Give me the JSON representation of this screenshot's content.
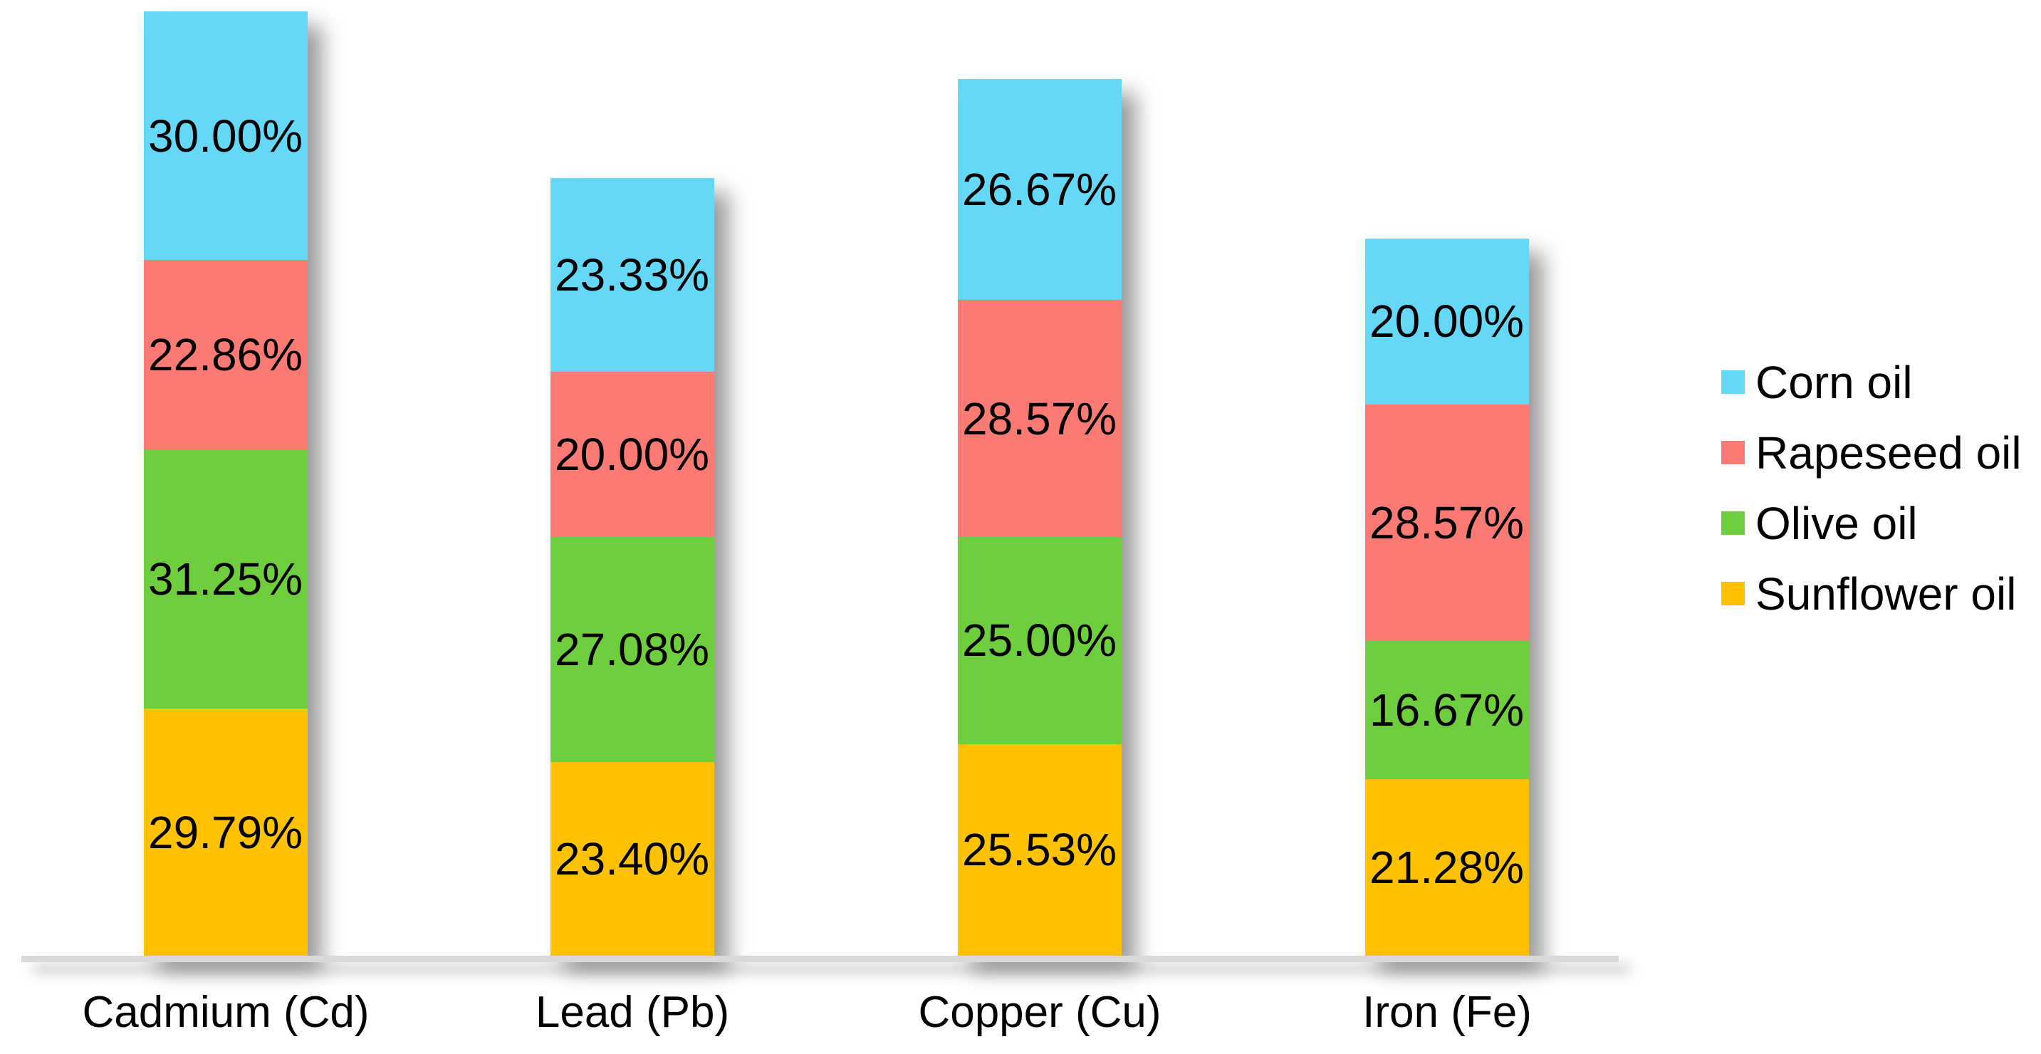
{
  "chart_data": {
    "type": "bar",
    "stacked": true,
    "title": "",
    "xlabel": "",
    "ylabel": "",
    "grid": false,
    "value_format": "percent_2dp",
    "categories": [
      "Cadmium (Cd)",
      "Lead (Pb)",
      "Copper (Cu)",
      "Iron (Fe)"
    ],
    "series_bottom_to_top": [
      {
        "name": "Sunflower oil",
        "color": "#FFC201",
        "values": [
          29.79,
          23.4,
          25.53,
          21.28
        ],
        "data_labels": [
          "29.79%",
          "23.40%",
          "25.53%",
          "21.28%"
        ]
      },
      {
        "name": "Olive oil",
        "color": "#6FCE3E",
        "values": [
          31.25,
          27.08,
          25.0,
          16.67
        ],
        "data_labels": [
          "31.25%",
          "27.08%",
          "25.00%",
          "16.67%"
        ]
      },
      {
        "name": "Rapeseed oil",
        "color": "#FB7B74",
        "values": [
          22.86,
          20.0,
          28.57,
          28.57
        ],
        "data_labels": [
          "22.86%",
          "20.00%",
          "28.57%",
          "28.57%"
        ]
      },
      {
        "name": "Corn oil",
        "color": "#66D8F7",
        "values": [
          30.0,
          23.33,
          26.67,
          20.0
        ],
        "data_labels": [
          "30.00%",
          "23.33%",
          "26.67%",
          "20.00%"
        ]
      }
    ],
    "legend": {
      "position": "right",
      "order_top_to_bottom": [
        "Corn oil",
        "Rapeseed oil",
        "Olive oil",
        "Sunflower oil"
      ]
    }
  },
  "colors": {
    "axis_line": "#D9D9D9",
    "label_text": "#000000",
    "background": "#FFFFFF"
  }
}
